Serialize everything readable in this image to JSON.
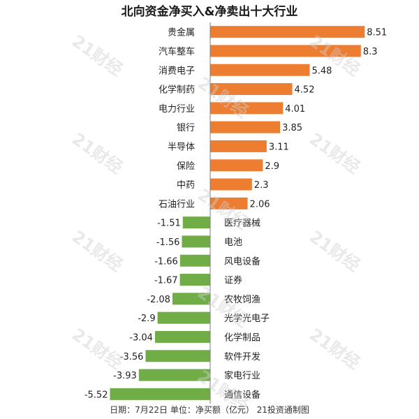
{
  "title": "北向资金净买入&净卖出十大行业",
  "footer": "日期：7月22日 单位：净买额（亿元） 21投资通制图",
  "watermark": "21财经",
  "colors": {
    "positive": "#ED7D31",
    "negative": "#70AD47",
    "axis": "#7f7f7f"
  },
  "chart_data": {
    "type": "bar",
    "orientation": "horizontal",
    "title": "北向资金净买入&净卖出十大行业",
    "categories": [
      "贵金属",
      "汽车整车",
      "消费电子",
      "化学制药",
      "电力行业",
      "银行",
      "半导体",
      "保险",
      "中药",
      "石油行业",
      "医疗器械",
      "电池",
      "风电设备",
      "证券",
      "农牧饲渔",
      "光学光电子",
      "化学制品",
      "软件开发",
      "家电行业",
      "通信设备"
    ],
    "values": [
      8.51,
      8.3,
      5.48,
      4.52,
      4.01,
      3.85,
      3.11,
      2.9,
      2.3,
      2.06,
      -1.51,
      -1.56,
      -1.66,
      -1.67,
      -2.08,
      -2.9,
      -3.04,
      -3.56,
      -3.93,
      -5.52
    ],
    "value_labels": [
      "8.51",
      "8.3",
      "5.48",
      "4.52",
      "4.01",
      "3.85",
      "3.11",
      "2.9",
      "2.3",
      "2.06",
      "-1.51",
      "-1.56",
      "-1.66",
      "-1.67",
      "-2.08",
      "-2.9",
      "-3.04",
      "-3.56",
      "-3.93",
      "-5.52"
    ],
    "grid": false,
    "legend": "none"
  }
}
